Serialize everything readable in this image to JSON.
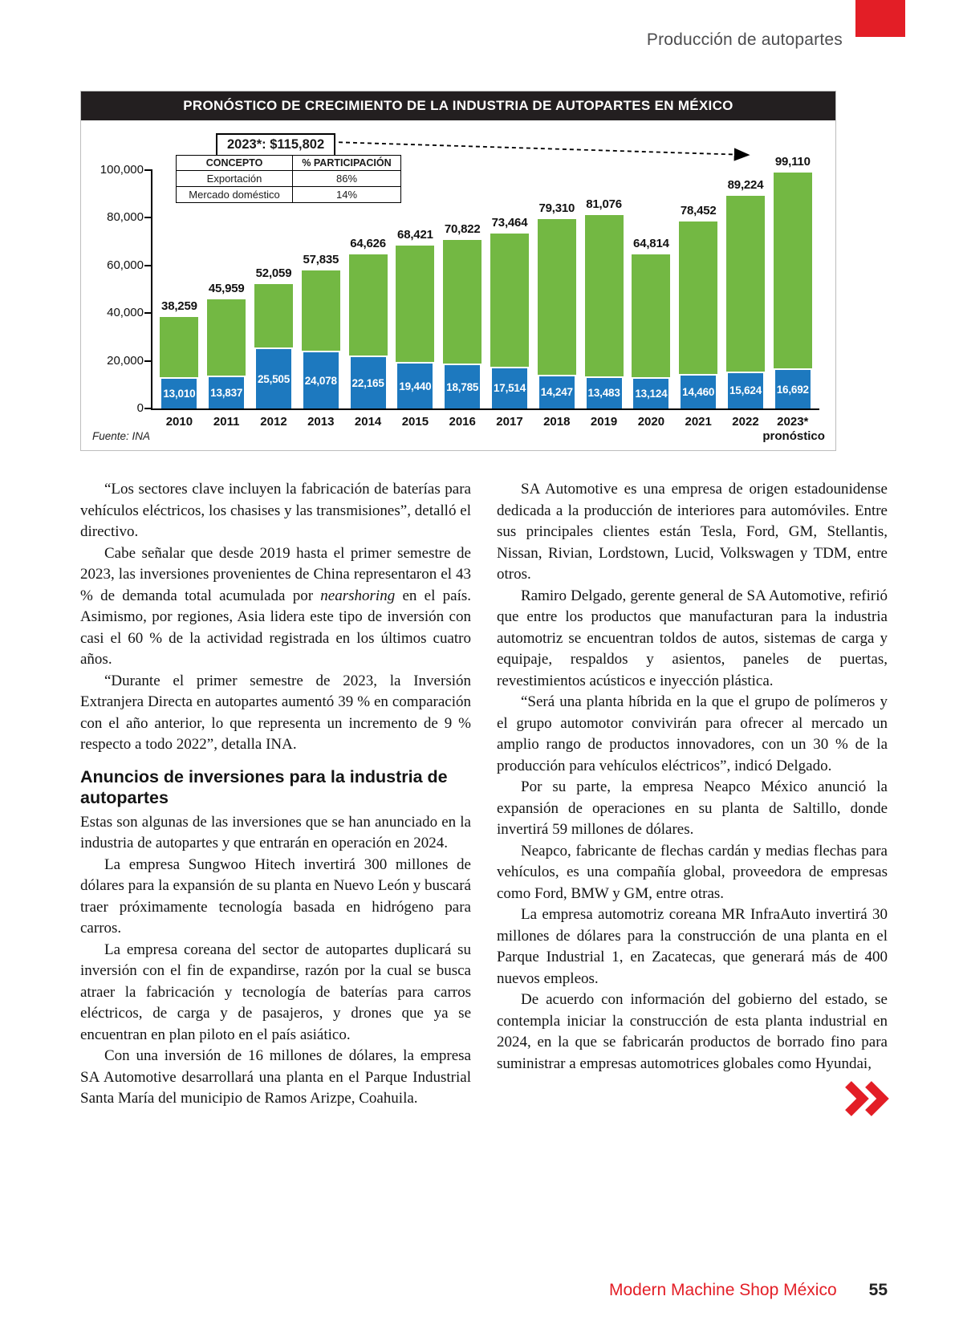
{
  "page": {
    "header": "Producción de autopartes",
    "footer_brand": "Modern Machine Shop México",
    "page_number": "55"
  },
  "colors": {
    "red": "#e31e26",
    "green": "#73b843",
    "blue": "#1d79bf",
    "dark": "#231f20"
  },
  "chart_data": {
    "type": "bar",
    "title": "PRONÓSTICO DE CRECIMIENTO DE LA INDUSTRIA DE AUTOPARTES EN MÉXICO",
    "callout": "2023*: $115,802",
    "source": "Fuente: INA",
    "categories": [
      "2010",
      "2011",
      "2012",
      "2013",
      "2014",
      "2015",
      "2016",
      "2017",
      "2018",
      "2019",
      "2020",
      "2021",
      "2022",
      "2023*"
    ],
    "forecast_note": "pronóstico",
    "series": [
      {
        "name": "Exportación",
        "color": "#73b843",
        "values": [
          38259,
          45959,
          52059,
          57835,
          64626,
          68421,
          70822,
          73464,
          79310,
          81076,
          64814,
          78452,
          89224,
          99110
        ]
      },
      {
        "name": "Mercado doméstico",
        "color": "#1d79bf",
        "values": [
          13010,
          13837,
          25505,
          24078,
          22165,
          19440,
          18785,
          17514,
          14247,
          13483,
          13124,
          14460,
          15624,
          16692
        ]
      }
    ],
    "ylim": [
      0,
      100000
    ],
    "yticks": [
      "0",
      "20,000",
      "40,000",
      "60,000",
      "80,000",
      "100,000"
    ],
    "grid": false,
    "legend_position": "top-left-table",
    "participation_table": {
      "headers": [
        "CONCEPTO",
        "% PARTICIPACIÓN"
      ],
      "rows": [
        [
          "Exportación",
          "86%"
        ],
        [
          "Mercado doméstico",
          "14%"
        ]
      ]
    }
  },
  "article": {
    "left": [
      {
        "kind": "p",
        "text": "“Los sectores clave incluyen la fabricación de baterías para vehículos eléctricos, los chasises y las transmisiones”, detalló el directivo."
      },
      {
        "kind": "p",
        "text": "Cabe señalar que desde 2019 hasta el primer semestre de 2023, las inversiones provenientes de China representaron el 43 % de demanda total acumulada por <i>nearshoring</i> en el país. Asimismo, por regiones, Asia lidera este tipo de inversión con casi el 60 % de la actividad registrada en los últimos cuatro años."
      },
      {
        "kind": "p",
        "text": "“Durante el primer semestre de 2023, la Inversión Extranjera Directa en autopartes aumentó 39 % en comparación con el año anterior, lo que representa un incremento de 9 % respecto a todo 2022”, detalla INA."
      },
      {
        "kind": "h",
        "text": "Anuncios de inversiones para la industria de autopartes"
      },
      {
        "kind": "p",
        "indent": false,
        "text": "Estas son algunas de las inversiones que se han anunciado en la industria de autopartes y que entrarán en operación en 2024."
      },
      {
        "kind": "p",
        "text": "La empresa Sungwoo Hitech invertirá 300 millones de dólares para la expansión de su planta en Nuevo León y buscará traer próximamente tecnología basada en hidrógeno para carros."
      },
      {
        "kind": "p",
        "text": "La empresa coreana del sector de autopartes duplicará su inversión con el fin de expandirse, razón por la cual se busca atraer la fabricación y tecnología de baterías para carros eléctricos, de carga y de pasajeros, y drones que ya se encuentran en plan piloto en el país asiático."
      },
      {
        "kind": "p",
        "text": "Con una inversión de 16 millones de dólares, la empresa SA Automotive desarrollará una planta en el Parque Industrial Santa María del municipio de Ramos Arizpe, Coahuila."
      }
    ],
    "right": [
      {
        "kind": "p",
        "text": "SA Automotive es una empresa de origen estadounidense dedicada a la producción de interiores para automóviles. Entre sus principales clientes están Tesla, Ford, GM, Stellantis, Nissan, Rivian, Lordstown, Lucid, Volkswagen y TDM, entre otros."
      },
      {
        "kind": "p",
        "text": "Ramiro Delgado, gerente general de SA Automotive, refirió que entre los productos que manufacturan para la industria automotriz se encuentran toldos de autos, sistemas de carga y equipaje, respaldos y asientos, paneles de puertas, revestimientos acústicos e inyección plástica."
      },
      {
        "kind": "p",
        "text": "“Será una planta híbrida en la que el grupo de polímeros y el grupo automotor convivirán para ofrecer al mercado un amplio rango de productos innovadores, con un 30 % de la producción para vehículos eléctricos”, indicó Delgado."
      },
      {
        "kind": "p",
        "text": "Por su parte, la empresa Neapco México anunció la expansión de operaciones en su planta de Saltillo, donde invertirá 59 millones de dólares."
      },
      {
        "kind": "p",
        "text": "Neapco, fabricante de flechas cardán y medias flechas para vehículos, es una compañía global, proveedora de empresas como Ford, BMW y GM, entre otras."
      },
      {
        "kind": "p",
        "text": "La empresa automotriz coreana MR InfraAuto invertirá 30 millones de dólares para la construcción de una planta en el Parque Industrial 1, en Zacatecas, que generará más de 400 nuevos empleos."
      },
      {
        "kind": "p",
        "text": "De acuerdo con información del gobierno del estado, se contempla iniciar la construcción de esta planta industrial en 2024, en la que se fabricarán productos de borrado fino para suministrar a empresas automotrices globales como Hyundai,"
      }
    ]
  }
}
